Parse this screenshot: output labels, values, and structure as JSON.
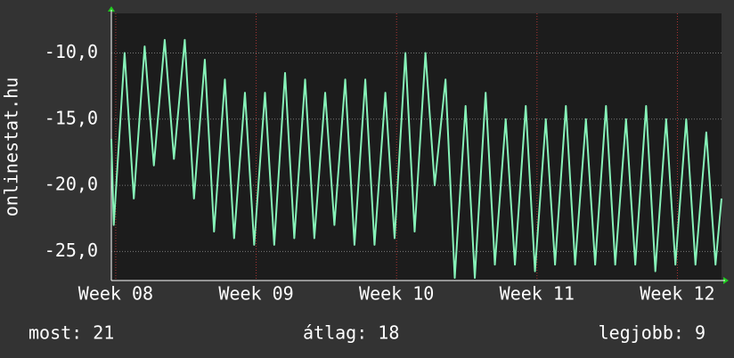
{
  "chart_data": {
    "type": "line",
    "y_label": "onlinestat.hu",
    "x": [
      -0.22,
      -0.1,
      0.44,
      0.9,
      1.44,
      1.9,
      2.44,
      2.9,
      3.44,
      3.9,
      4.44,
      4.9,
      5.44,
      5.9,
      6.44,
      6.9,
      7.44,
      7.9,
      8.44,
      8.9,
      9.44,
      9.9,
      10.44,
      10.9,
      11.44,
      11.9,
      12.44,
      12.9,
      13.44,
      13.9,
      14.44,
      14.9,
      15.44,
      15.9,
      16.44,
      16.9,
      17.44,
      17.9,
      18.44,
      18.9,
      19.44,
      19.9,
      20.44,
      20.9,
      21.44,
      21.9,
      22.44,
      22.9,
      23.44,
      23.9,
      24.44,
      24.9,
      25.44,
      25.9,
      26.44,
      26.9,
      27.44,
      27.9,
      28.44,
      28.9,
      29.44,
      29.9,
      30.2
    ],
    "series": [
      {
        "color": "#86f2b8",
        "values": [
          -16.5,
          -23,
          -10,
          -21,
          -9.5,
          -18.5,
          -9,
          -18,
          -9,
          -21,
          -10.5,
          -23.5,
          -12,
          -24,
          -13,
          -24.5,
          -13,
          -24.5,
          -11.5,
          -24,
          -12,
          -24,
          -13,
          -23,
          -12,
          -24.5,
          -12,
          -24.5,
          -13,
          -24,
          -10,
          -23.5,
          -10,
          -20,
          -12,
          -27,
          -14,
          -27,
          -13,
          -26,
          -15,
          -26,
          -14,
          -26.5,
          -15,
          -26,
          -14,
          -26,
          -15,
          -26,
          -14,
          -26,
          -15,
          -26,
          -14,
          -26.5,
          -15,
          -26,
          -15,
          -26,
          -16,
          -26,
          -21
        ]
      }
    ],
    "xlim": [
      -0.22,
      30.2
    ],
    "xticks": [
      {
        "value": 0,
        "label": "Week 08"
      },
      {
        "value": 7,
        "label": "Week 09"
      },
      {
        "value": 14,
        "label": "Week 10"
      },
      {
        "value": 21,
        "label": "Week 11"
      },
      {
        "value": 28,
        "label": "Week 12"
      }
    ],
    "ylim": [
      -27.2,
      -7
    ],
    "yticks": [
      {
        "value": -25,
        "label": "-25,0"
      },
      {
        "value": -20,
        "label": "-20,0"
      },
      {
        "value": -15,
        "label": "-15,0"
      },
      {
        "value": -10,
        "label": "-10,0"
      }
    ],
    "grid": true,
    "footer": [
      "most: 21",
      "átlag: 18",
      "legjobb: 9"
    ]
  }
}
